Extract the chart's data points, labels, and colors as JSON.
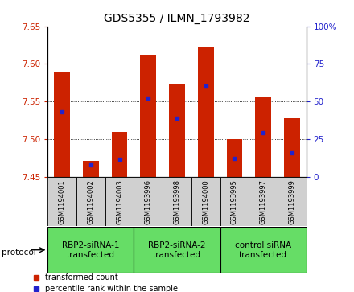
{
  "title": "GDS5355 / ILMN_1793982",
  "samples": [
    "GSM1194001",
    "GSM1194002",
    "GSM1194003",
    "GSM1193996",
    "GSM1193998",
    "GSM1194000",
    "GSM1193995",
    "GSM1193997",
    "GSM1193999"
  ],
  "transformed_count": [
    7.59,
    7.471,
    7.51,
    7.612,
    7.573,
    7.622,
    7.5,
    7.555,
    7.528
  ],
  "percentile_rank": [
    43.0,
    8.0,
    11.5,
    52.0,
    39.0,
    60.0,
    12.0,
    29.0,
    16.0
  ],
  "ylim_left": [
    7.45,
    7.65
  ],
  "ylim_right": [
    0,
    100
  ],
  "yticks_left": [
    7.45,
    7.5,
    7.55,
    7.6,
    7.65
  ],
  "yticks_right": [
    0,
    25,
    50,
    75,
    100
  ],
  "bar_bottom": 7.45,
  "bar_color": "#cc2200",
  "percentile_color": "#2222cc",
  "groups": [
    {
      "label": "RBP2-siRNA-1\ntransfected",
      "indices": [
        0,
        1,
        2
      ]
    },
    {
      "label": "RBP2-siRNA-2\ntransfected",
      "indices": [
        3,
        4,
        5
      ]
    },
    {
      "label": "control siRNA\ntransfected",
      "indices": [
        6,
        7,
        8
      ]
    }
  ],
  "group_color": "#66dd66",
  "sample_bg_color": "#d0d0d0",
  "ylabel_left_color": "#cc2200",
  "ylabel_right_color": "#2222cc",
  "title_fontsize": 10,
  "legend_red_label": "transformed count",
  "legend_blue_label": "percentile rank within the sample",
  "bar_width": 0.55
}
